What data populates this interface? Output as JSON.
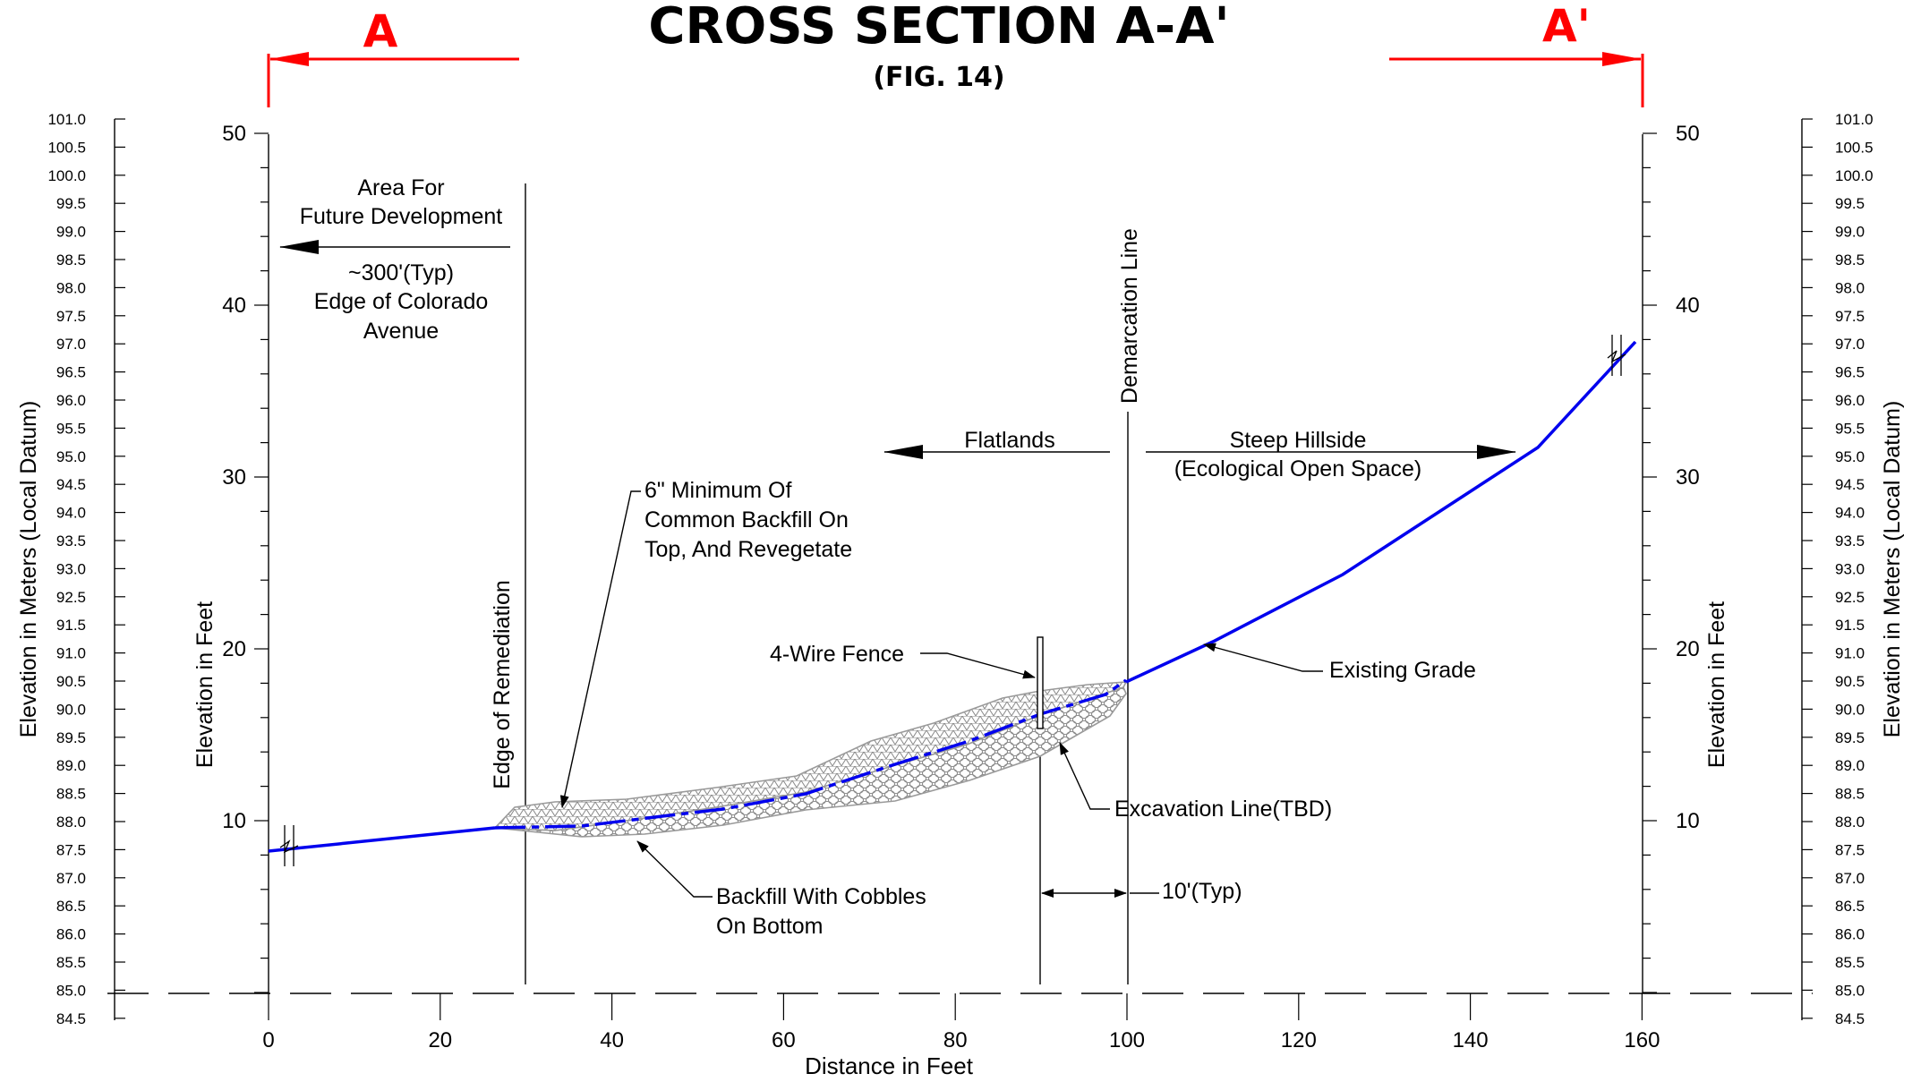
{
  "header": {
    "title": "CROSS SECTION A-A'",
    "subtitle": "(FIG. 14)",
    "marker_left": "A",
    "marker_right": "A'"
  },
  "axes": {
    "meters_label": "Elevation in Meters (Local Datum)",
    "feet_label": "Elevation in Feet",
    "x_label": "Distance in Feet",
    "meters_ticks": [
      "101.0",
      "100.5",
      "100.0",
      "99.5",
      "99.0",
      "98.5",
      "98.0",
      "97.5",
      "97.0",
      "96.5",
      "96.0",
      "95.5",
      "95.0",
      "94.5",
      "94.0",
      "93.5",
      "93.0",
      "92.5",
      "91.5",
      "91.0",
      "90.5",
      "90.0",
      "89.5",
      "89.0",
      "88.5",
      "88.0",
      "87.5",
      "87.0",
      "86.5",
      "86.0",
      "85.5",
      "85.0",
      "84.5"
    ],
    "feet_ticks": [
      "50",
      "40",
      "30",
      "20",
      "10"
    ],
    "x_ticks": [
      "0",
      "20",
      "40",
      "60",
      "80",
      "100",
      "120",
      "140",
      "160"
    ]
  },
  "annotations": {
    "future_dev": [
      "Area For",
      "Future Development"
    ],
    "colorado": [
      "~300'(Typ)",
      "Edge of Colorado",
      "Avenue"
    ],
    "edge_remediation": "Edge of Remediation",
    "demarcation": "Demarcation Line",
    "flatlands": "Flatlands",
    "steep": [
      "Steep Hillside",
      "(Ecological Open Space)"
    ],
    "backfill_top": [
      "6\" Minimum Of",
      "Common Backfill On",
      "Top, And Revegetate"
    ],
    "fence": "4-Wire Fence",
    "existing_grade": "Existing Grade",
    "excavation": "Excavation Line(TBD)",
    "typ10": "10'(Typ)",
    "backfill_bottom": [
      "Backfill With Cobbles",
      "On Bottom"
    ]
  },
  "colors": {
    "grade": "#0000ee",
    "marker": "#ff0000",
    "backfill": "#9a9a9a"
  }
}
